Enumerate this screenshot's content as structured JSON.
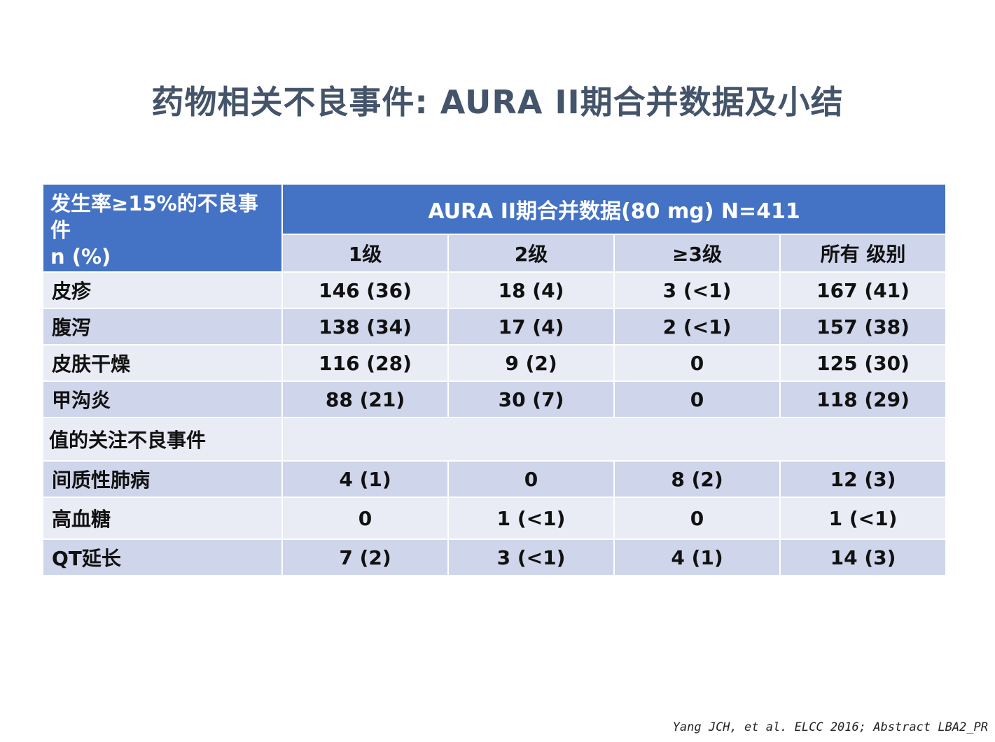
{
  "title": "药物相关不良事件: AURA II期合并数据及小结",
  "table": {
    "corner_line1": "发生率≥15%的不良事件",
    "corner_line2": "n (%)",
    "group_header": "AURA  II期合并数据(80 mg) N=411",
    "columns": [
      "1级",
      "2级",
      "≥3级",
      "所有 级别"
    ],
    "rows_common": [
      {
        "label": "皮疹",
        "values": [
          "146 (36)",
          "18 (4)",
          "3 (<1)",
          "167 (41)"
        ]
      },
      {
        "label": "腹泻",
        "values": [
          "138 (34)",
          "17 (4)",
          "2 (<1)",
          "157 (38)"
        ]
      },
      {
        "label": "皮肤干燥",
        "values": [
          "116 (28)",
          "9 (2)",
          "0",
          "125 (30)"
        ]
      },
      {
        "label": "甲沟炎",
        "values": [
          "88 (21)",
          "30 (7)",
          "0",
          "118 (29)"
        ]
      }
    ],
    "section_label": "值的关注不良事件",
    "rows_notable": [
      {
        "label": "间质性肺病",
        "values": [
          "4 (1)",
          "0",
          "8 (2)",
          "12 (3)"
        ]
      },
      {
        "label": "高血糖",
        "values": [
          "0",
          "1 (<1)",
          "0",
          "1 (<1)"
        ]
      },
      {
        "label": "QT延长",
        "values": [
          "7 (2)",
          "3 (<1)",
          "4 (1)",
          "14 (3)"
        ]
      }
    ]
  },
  "citation": "Yang JCH, et al. ELCC 2016; Abstract LBA2_PR",
  "colors": {
    "title": "#44546a",
    "header_blue": "#4472c4",
    "row_light": "#e9ebf5",
    "row_dark": "#cfd5ea"
  }
}
